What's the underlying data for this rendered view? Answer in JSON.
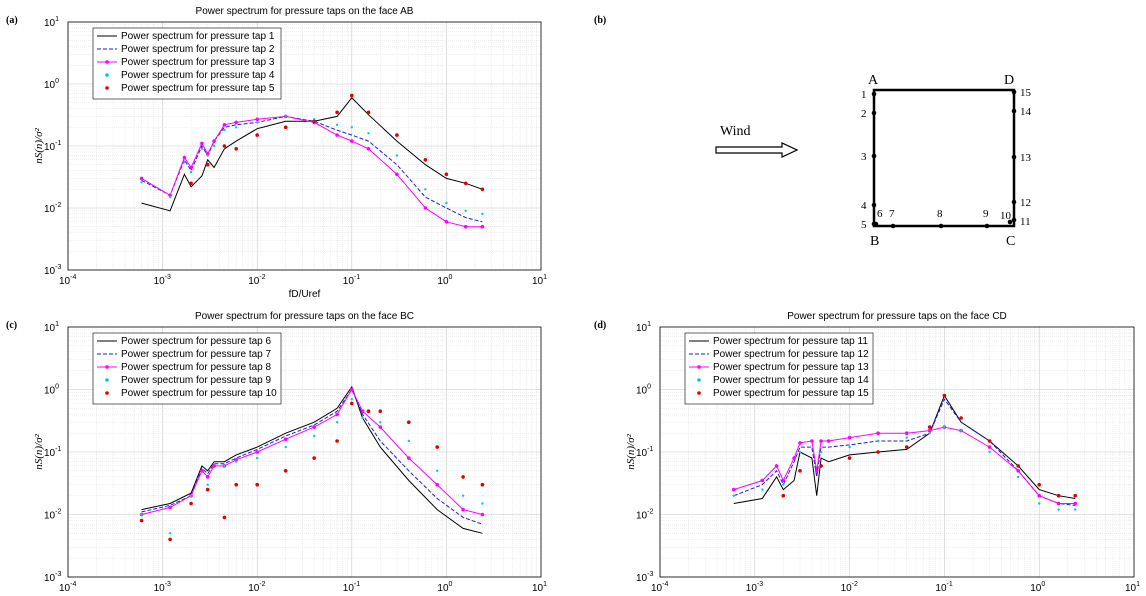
{
  "panels": {
    "a": {
      "label": "(a)"
    },
    "b": {
      "label": "(b)"
    },
    "c": {
      "label": "(c)"
    },
    "d": {
      "label": "(d)"
    }
  },
  "diagram": {
    "wind_label": "Wind",
    "corners": [
      "A",
      "D",
      "B",
      "C"
    ],
    "taps": [
      "1",
      "2",
      "3",
      "4",
      "5",
      "6",
      "7",
      "8",
      "9",
      "10",
      "11",
      "12",
      "13",
      "14",
      "15"
    ]
  },
  "chart_data": [
    {
      "type": "line",
      "panel": "a",
      "title": "Power spectrum for pressure taps on the face AB",
      "xlabel": "fD/Uref",
      "ylabel": "nS(n)/σ²",
      "x_scale": "log",
      "y_scale": "log",
      "xlim": [
        0.0001,
        10
      ],
      "ylim": [
        0.001,
        10
      ],
      "x_ticks": [
        "10-4",
        "10-3",
        "10-2",
        "10-1",
        "100",
        "101"
      ],
      "y_ticks": [
        "10-3",
        "10-2",
        "10-1",
        "100",
        "101"
      ],
      "grid": true,
      "legend_position": "top-left",
      "series": [
        {
          "name": "Power spectrum for pressure tap 1",
          "color": "#000000",
          "style": "solid",
          "x": [
            0.0006,
            0.0012,
            0.0017,
            0.002,
            0.0026,
            0.003,
            0.0035,
            0.0045,
            0.006,
            0.01,
            0.02,
            0.04,
            0.07,
            0.1,
            0.15,
            0.3,
            0.6,
            1.0,
            1.6,
            2.4
          ],
          "y": [
            0.012,
            0.009,
            0.035,
            0.022,
            0.033,
            0.06,
            0.045,
            0.09,
            0.12,
            0.19,
            0.25,
            0.25,
            0.3,
            0.6,
            0.32,
            0.12,
            0.05,
            0.03,
            0.025,
            0.02
          ]
        },
        {
          "name": "Power spectrum for pressure tap 2",
          "color": "#1f1fd0",
          "style": "dashed",
          "x": [
            0.0006,
            0.0012,
            0.0017,
            0.002,
            0.0026,
            0.003,
            0.0035,
            0.0045,
            0.006,
            0.01,
            0.02,
            0.04,
            0.07,
            0.1,
            0.15,
            0.3,
            0.6,
            1.0,
            1.6,
            2.4
          ],
          "y": [
            0.028,
            0.016,
            0.06,
            0.04,
            0.1,
            0.07,
            0.12,
            0.2,
            0.22,
            0.24,
            0.3,
            0.25,
            0.18,
            0.15,
            0.12,
            0.05,
            0.015,
            0.01,
            0.007,
            0.006
          ]
        },
        {
          "name": "Power spectrum for pressure tap 3",
          "color": "#ff00ff",
          "style": "solid-marker",
          "x": [
            0.0006,
            0.0012,
            0.0017,
            0.002,
            0.0026,
            0.003,
            0.0035,
            0.0045,
            0.006,
            0.01,
            0.02,
            0.04,
            0.07,
            0.1,
            0.15,
            0.3,
            0.6,
            1.0,
            1.6,
            2.4
          ],
          "y": [
            0.03,
            0.016,
            0.065,
            0.045,
            0.11,
            0.075,
            0.12,
            0.22,
            0.24,
            0.27,
            0.3,
            0.24,
            0.15,
            0.12,
            0.09,
            0.035,
            0.01,
            0.006,
            0.005,
            0.005
          ]
        },
        {
          "name": "Power spectrum for pressure tap 4",
          "color": "#00c8e0",
          "style": "dotted",
          "x": [
            0.0006,
            0.0012,
            0.0017,
            0.002,
            0.0026,
            0.003,
            0.0035,
            0.0045,
            0.006,
            0.01,
            0.02,
            0.04,
            0.07,
            0.1,
            0.15,
            0.3,
            0.6,
            1.0,
            1.6,
            2.4
          ],
          "y": [
            0.026,
            0.015,
            0.055,
            0.038,
            0.09,
            0.07,
            0.1,
            0.18,
            0.2,
            0.24,
            0.3,
            0.27,
            0.22,
            0.2,
            0.16,
            0.07,
            0.02,
            0.012,
            0.009,
            0.008
          ]
        },
        {
          "name": "Power spectrum for pressure tap 5",
          "color": "#e00000",
          "style": "marker",
          "x": [
            0.002,
            0.003,
            0.0045,
            0.006,
            0.01,
            0.02,
            0.04,
            0.07,
            0.1,
            0.15,
            0.3,
            0.6,
            1.0,
            1.6,
            2.4
          ],
          "y": [
            0.025,
            0.05,
            0.1,
            0.09,
            0.15,
            0.2,
            0.25,
            0.35,
            0.65,
            0.35,
            0.15,
            0.06,
            0.035,
            0.025,
            0.02
          ]
        }
      ]
    },
    {
      "type": "line",
      "panel": "c",
      "title": "Power spectrum for pressure taps on the face BC",
      "xlabel": "fD/Uref",
      "ylabel": "nS(n)/σ²",
      "x_scale": "log",
      "y_scale": "log",
      "xlim": [
        0.0001,
        10
      ],
      "ylim": [
        0.001,
        10
      ],
      "x_ticks": [
        "10-4",
        "10-3",
        "10-2",
        "10-1",
        "100",
        "101"
      ],
      "y_ticks": [
        "10-3",
        "10-2",
        "10-1",
        "100",
        "101"
      ],
      "grid": true,
      "legend_position": "top-left",
      "series": [
        {
          "name": "Power spectrum for pessure tap 6",
          "color": "#000000",
          "style": "solid",
          "x": [
            0.0006,
            0.0012,
            0.002,
            0.0026,
            0.003,
            0.0035,
            0.0045,
            0.006,
            0.01,
            0.02,
            0.04,
            0.07,
            0.1,
            0.13,
            0.2,
            0.4,
            0.8,
            1.5,
            2.4
          ],
          "y": [
            0.012,
            0.015,
            0.022,
            0.06,
            0.05,
            0.07,
            0.07,
            0.09,
            0.12,
            0.2,
            0.3,
            0.5,
            1.1,
            0.35,
            0.12,
            0.035,
            0.012,
            0.006,
            0.005
          ]
        },
        {
          "name": "Power spectrum for pessure tap 7",
          "color": "#1f1fd0",
          "style": "dashed",
          "x": [
            0.0006,
            0.0012,
            0.002,
            0.0026,
            0.003,
            0.0035,
            0.0045,
            0.006,
            0.01,
            0.02,
            0.04,
            0.07,
            0.1,
            0.13,
            0.2,
            0.4,
            0.8,
            1.5,
            2.4
          ],
          "y": [
            0.011,
            0.014,
            0.02,
            0.055,
            0.045,
            0.065,
            0.065,
            0.08,
            0.11,
            0.18,
            0.27,
            0.45,
            1.0,
            0.4,
            0.15,
            0.05,
            0.018,
            0.009,
            0.007
          ]
        },
        {
          "name": "Power spectrum for pessure tap 8",
          "color": "#ff00ff",
          "style": "solid-marker",
          "x": [
            0.0006,
            0.0012,
            0.002,
            0.0026,
            0.003,
            0.0035,
            0.0045,
            0.006,
            0.01,
            0.02,
            0.04,
            0.07,
            0.1,
            0.13,
            0.2,
            0.4,
            0.8,
            1.5,
            2.4
          ],
          "y": [
            0.01,
            0.013,
            0.02,
            0.05,
            0.04,
            0.06,
            0.06,
            0.075,
            0.1,
            0.16,
            0.25,
            0.4,
            1.0,
            0.45,
            0.25,
            0.08,
            0.03,
            0.012,
            0.01
          ]
        },
        {
          "name": "Power spectrum for pessure tap 9",
          "color": "#00c8e0",
          "style": "dotted",
          "x": [
            0.0006,
            0.0012,
            0.002,
            0.003,
            0.0045,
            0.006,
            0.01,
            0.02,
            0.04,
            0.07,
            0.1,
            0.13,
            0.2,
            0.4,
            0.8,
            1.5,
            2.4
          ],
          "y": [
            0.01,
            0.005,
            0.02,
            0.03,
            0.06,
            0.07,
            0.08,
            0.12,
            0.18,
            0.3,
            0.7,
            0.35,
            0.3,
            0.15,
            0.05,
            0.02,
            0.015
          ]
        },
        {
          "name": "Power spectrum for pessure tap 10",
          "color": "#e00000",
          "style": "marker",
          "x": [
            0.0006,
            0.0012,
            0.002,
            0.003,
            0.0045,
            0.006,
            0.01,
            0.02,
            0.04,
            0.07,
            0.1,
            0.15,
            0.2,
            0.4,
            0.8,
            1.5,
            2.4
          ],
          "y": [
            0.008,
            0.004,
            0.015,
            0.025,
            0.009,
            0.03,
            0.03,
            0.05,
            0.08,
            0.15,
            0.6,
            0.45,
            0.45,
            0.3,
            0.12,
            0.04,
            0.03
          ]
        }
      ]
    },
    {
      "type": "line",
      "panel": "d",
      "title": "Power spectrum for pressure taps on the face CD",
      "xlabel": "fD/Uref",
      "ylabel": "nS(n)/σ²",
      "x_scale": "log",
      "y_scale": "log",
      "xlim": [
        0.0001,
        10
      ],
      "ylim": [
        0.001,
        10
      ],
      "x_ticks": [
        "10-4",
        "10-3",
        "10-2",
        "10-1",
        "100",
        "101"
      ],
      "y_ticks": [
        "10-3",
        "10-2",
        "10-1",
        "100",
        "101"
      ],
      "grid": true,
      "legend_position": "top-left",
      "series": [
        {
          "name": "Power spectrum for pessure tap 11",
          "color": "#000000",
          "style": "solid",
          "x": [
            0.0006,
            0.0012,
            0.0017,
            0.002,
            0.0026,
            0.003,
            0.004,
            0.0045,
            0.005,
            0.006,
            0.01,
            0.02,
            0.04,
            0.07,
            0.1,
            0.15,
            0.3,
            0.6,
            1.0,
            1.6,
            2.4
          ],
          "y": [
            0.015,
            0.018,
            0.04,
            0.025,
            0.035,
            0.1,
            0.08,
            0.02,
            0.08,
            0.07,
            0.09,
            0.1,
            0.11,
            0.2,
            0.8,
            0.3,
            0.15,
            0.06,
            0.025,
            0.02,
            0.018
          ]
        },
        {
          "name": "Power spectrum for pessure tap 12",
          "color": "#1f1fd0",
          "style": "dashed",
          "x": [
            0.0006,
            0.0012,
            0.0017,
            0.002,
            0.0026,
            0.003,
            0.004,
            0.0045,
            0.005,
            0.006,
            0.01,
            0.02,
            0.04,
            0.07,
            0.1,
            0.15,
            0.3,
            0.6,
            1.0,
            1.6,
            2.4
          ],
          "y": [
            0.02,
            0.03,
            0.05,
            0.03,
            0.07,
            0.12,
            0.12,
            0.04,
            0.12,
            0.12,
            0.13,
            0.15,
            0.15,
            0.2,
            0.7,
            0.3,
            0.15,
            0.05,
            0.02,
            0.015,
            0.014
          ]
        },
        {
          "name": "Power spectrum for pessure tap 13",
          "color": "#ff00ff",
          "style": "solid-marker",
          "x": [
            0.0006,
            0.0012,
            0.0017,
            0.002,
            0.0026,
            0.003,
            0.004,
            0.0045,
            0.005,
            0.006,
            0.01,
            0.02,
            0.04,
            0.07,
            0.1,
            0.15,
            0.3,
            0.6,
            1.0,
            1.6,
            2.4
          ],
          "y": [
            0.025,
            0.035,
            0.06,
            0.035,
            0.08,
            0.14,
            0.15,
            0.05,
            0.15,
            0.15,
            0.17,
            0.2,
            0.2,
            0.22,
            0.25,
            0.22,
            0.12,
            0.05,
            0.02,
            0.015,
            0.015
          ]
        },
        {
          "name": "Power spectrum for pessure tap 14",
          "color": "#00c8e0",
          "style": "dotted",
          "x": [
            0.0006,
            0.0012,
            0.002,
            0.003,
            0.005,
            0.01,
            0.02,
            0.04,
            0.07,
            0.1,
            0.15,
            0.3,
            0.6,
            1.0,
            1.6,
            2.4
          ],
          "y": [
            0.02,
            0.025,
            0.03,
            0.1,
            0.1,
            0.12,
            0.15,
            0.17,
            0.2,
            0.25,
            0.22,
            0.1,
            0.04,
            0.015,
            0.012,
            0.012
          ]
        },
        {
          "name": "Power spectrum for pessure tap 15",
          "color": "#e00000",
          "style": "marker",
          "x": [
            0.002,
            0.003,
            0.005,
            0.01,
            0.02,
            0.04,
            0.07,
            0.1,
            0.15,
            0.3,
            0.6,
            1.0,
            1.6,
            2.4
          ],
          "y": [
            0.02,
            0.05,
            0.06,
            0.08,
            0.1,
            0.12,
            0.25,
            0.8,
            0.35,
            0.15,
            0.06,
            0.03,
            0.02,
            0.02
          ]
        }
      ]
    }
  ]
}
